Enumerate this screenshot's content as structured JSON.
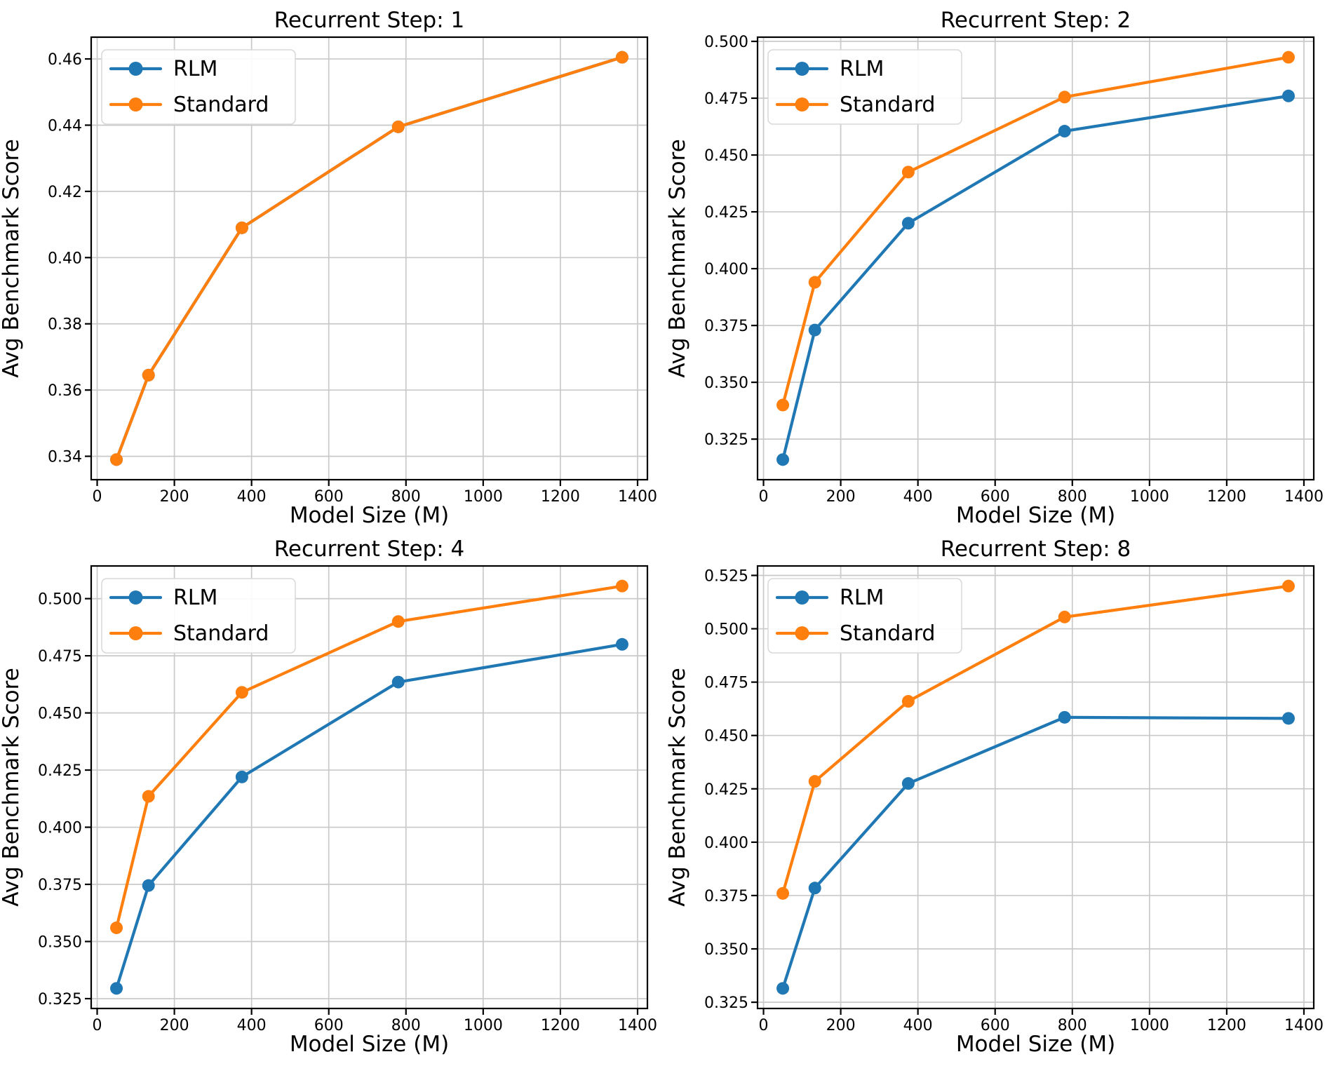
{
  "figure": {
    "background": "#ffffff",
    "text_color": "#000000",
    "series_colors": {
      "RLM": "#1f77b4",
      "Standard": "#ff7f0e"
    },
    "legend_labels": [
      "RLM",
      "Standard"
    ]
  },
  "chart_data": [
    {
      "type": "line",
      "title": "Recurrent Step: 1",
      "xlabel": "Model Size (M)",
      "ylabel": "Avg Benchmark Score",
      "x": [
        50,
        133,
        375,
        780,
        1360
      ],
      "series": [
        {
          "name": "RLM",
          "color": "#1f77b4",
          "values": [
            0.339,
            0.3645,
            0.409,
            0.4395,
            0.4605
          ]
        },
        {
          "name": "Standard",
          "color": "#ff7f0e",
          "values": [
            0.339,
            0.3645,
            0.409,
            0.4395,
            0.4605
          ]
        }
      ],
      "xticks": [
        0,
        200,
        400,
        600,
        800,
        1000,
        1200,
        1400
      ],
      "yticks": [
        0.34,
        0.36,
        0.38,
        0.4,
        0.42,
        0.44,
        0.46
      ],
      "ytick_decimals": 2,
      "grid": true,
      "legend_position": "upper-left"
    },
    {
      "type": "line",
      "title": "Recurrent Step: 2",
      "xlabel": "Model Size (M)",
      "ylabel": "Avg Benchmark Score",
      "x": [
        50,
        133,
        375,
        780,
        1360
      ],
      "series": [
        {
          "name": "RLM",
          "color": "#1f77b4",
          "values": [
            0.316,
            0.373,
            0.42,
            0.4605,
            0.476
          ]
        },
        {
          "name": "Standard",
          "color": "#ff7f0e",
          "values": [
            0.34,
            0.394,
            0.4425,
            0.4755,
            0.493
          ]
        }
      ],
      "xticks": [
        0,
        200,
        400,
        600,
        800,
        1000,
        1200,
        1400
      ],
      "yticks": [
        0.325,
        0.35,
        0.375,
        0.4,
        0.425,
        0.45,
        0.475,
        0.5
      ],
      "ytick_decimals": 3,
      "grid": true,
      "legend_position": "upper-left"
    },
    {
      "type": "line",
      "title": "Recurrent Step: 4",
      "xlabel": "Model Size (M)",
      "ylabel": "Avg Benchmark Score",
      "x": [
        50,
        133,
        375,
        780,
        1360
      ],
      "series": [
        {
          "name": "RLM",
          "color": "#1f77b4",
          "values": [
            0.3295,
            0.3745,
            0.422,
            0.4635,
            0.48
          ]
        },
        {
          "name": "Standard",
          "color": "#ff7f0e",
          "values": [
            0.356,
            0.4135,
            0.459,
            0.49,
            0.5055
          ]
        }
      ],
      "xticks": [
        0,
        200,
        400,
        600,
        800,
        1000,
        1200,
        1400
      ],
      "yticks": [
        0.325,
        0.35,
        0.375,
        0.4,
        0.425,
        0.45,
        0.475,
        0.5
      ],
      "ytick_decimals": 3,
      "grid": true,
      "legend_position": "upper-left"
    },
    {
      "type": "line",
      "title": "Recurrent Step: 8",
      "xlabel": "Model Size (M)",
      "ylabel": "Avg Benchmark Score",
      "x": [
        50,
        133,
        375,
        780,
        1360
      ],
      "series": [
        {
          "name": "RLM",
          "color": "#1f77b4",
          "values": [
            0.3315,
            0.3785,
            0.4275,
            0.4585,
            0.458
          ]
        },
        {
          "name": "Standard",
          "color": "#ff7f0e",
          "values": [
            0.376,
            0.4285,
            0.466,
            0.5055,
            0.52
          ]
        }
      ],
      "xticks": [
        0,
        200,
        400,
        600,
        800,
        1000,
        1200,
        1400
      ],
      "yticks": [
        0.325,
        0.35,
        0.375,
        0.4,
        0.425,
        0.45,
        0.475,
        0.5,
        0.525
      ],
      "ytick_decimals": 3,
      "grid": true,
      "legend_position": "upper-left"
    }
  ]
}
